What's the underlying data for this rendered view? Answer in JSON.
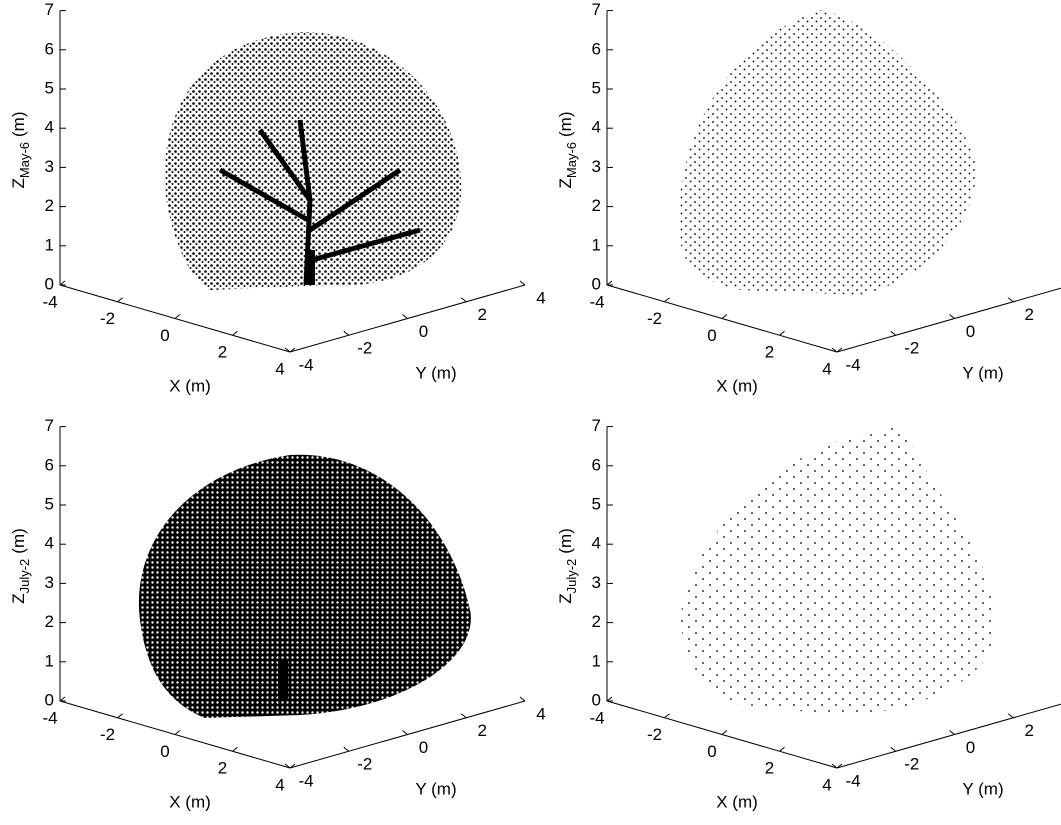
{
  "chart_data": [
    {
      "type": "scatter3d",
      "xlabel": "X (m)",
      "ylabel": "Y (m)",
      "zlabel": [
        "Z",
        "May-6",
        "(m)"
      ],
      "xlim": [
        -4,
        4
      ],
      "xticks": [
        -4,
        -2,
        0,
        2,
        4
      ],
      "ylim": [
        -4,
        4
      ],
      "yticks": [
        -4,
        -2,
        0,
        2,
        4
      ],
      "zlim": [
        0,
        7
      ],
      "zticks": [
        0,
        1,
        2,
        3,
        4,
        5,
        6,
        7
      ]
    },
    {
      "type": "scatter3d",
      "xlabel": "X (m)",
      "ylabel": "Y (m)",
      "zlabel": [
        "Z",
        "May-6",
        "(m)"
      ],
      "xlim": [
        -4,
        4
      ],
      "xticks": [
        -4,
        -2,
        0,
        2,
        4
      ],
      "ylim": [
        -4,
        4
      ],
      "yticks": [
        -4,
        -2,
        0,
        2
      ],
      "zlim": [
        0,
        7
      ],
      "zticks": [
        0,
        1,
        2,
        3,
        4,
        5,
        6,
        7
      ]
    },
    {
      "type": "scatter3d",
      "xlabel": "X (m)",
      "ylabel": "Y (m)",
      "zlabel": [
        "Z",
        "July-2",
        "(m)"
      ],
      "xlim": [
        -4,
        4
      ],
      "xticks": [
        -4,
        -2,
        0,
        2,
        4
      ],
      "ylim": [
        -4,
        4
      ],
      "yticks": [
        -4,
        -2,
        0,
        2,
        4
      ],
      "zlim": [
        0,
        7
      ],
      "zticks": [
        0,
        1,
        2,
        3,
        4,
        5,
        6,
        7
      ]
    },
    {
      "type": "scatter3d",
      "xlabel": "X (m)",
      "ylabel": "Y (m)",
      "zlabel": [
        "Z",
        "July-2",
        "(m)"
      ],
      "xlim": [
        -4,
        4
      ],
      "xticks": [
        -4,
        -2,
        0,
        2,
        4
      ],
      "ylim": [
        -4,
        4
      ],
      "yticks": [
        -4,
        -2,
        0,
        2
      ],
      "zlim": [
        0,
        7
      ],
      "zticks": [
        0,
        1,
        2,
        3,
        4,
        5,
        6,
        7
      ]
    }
  ]
}
